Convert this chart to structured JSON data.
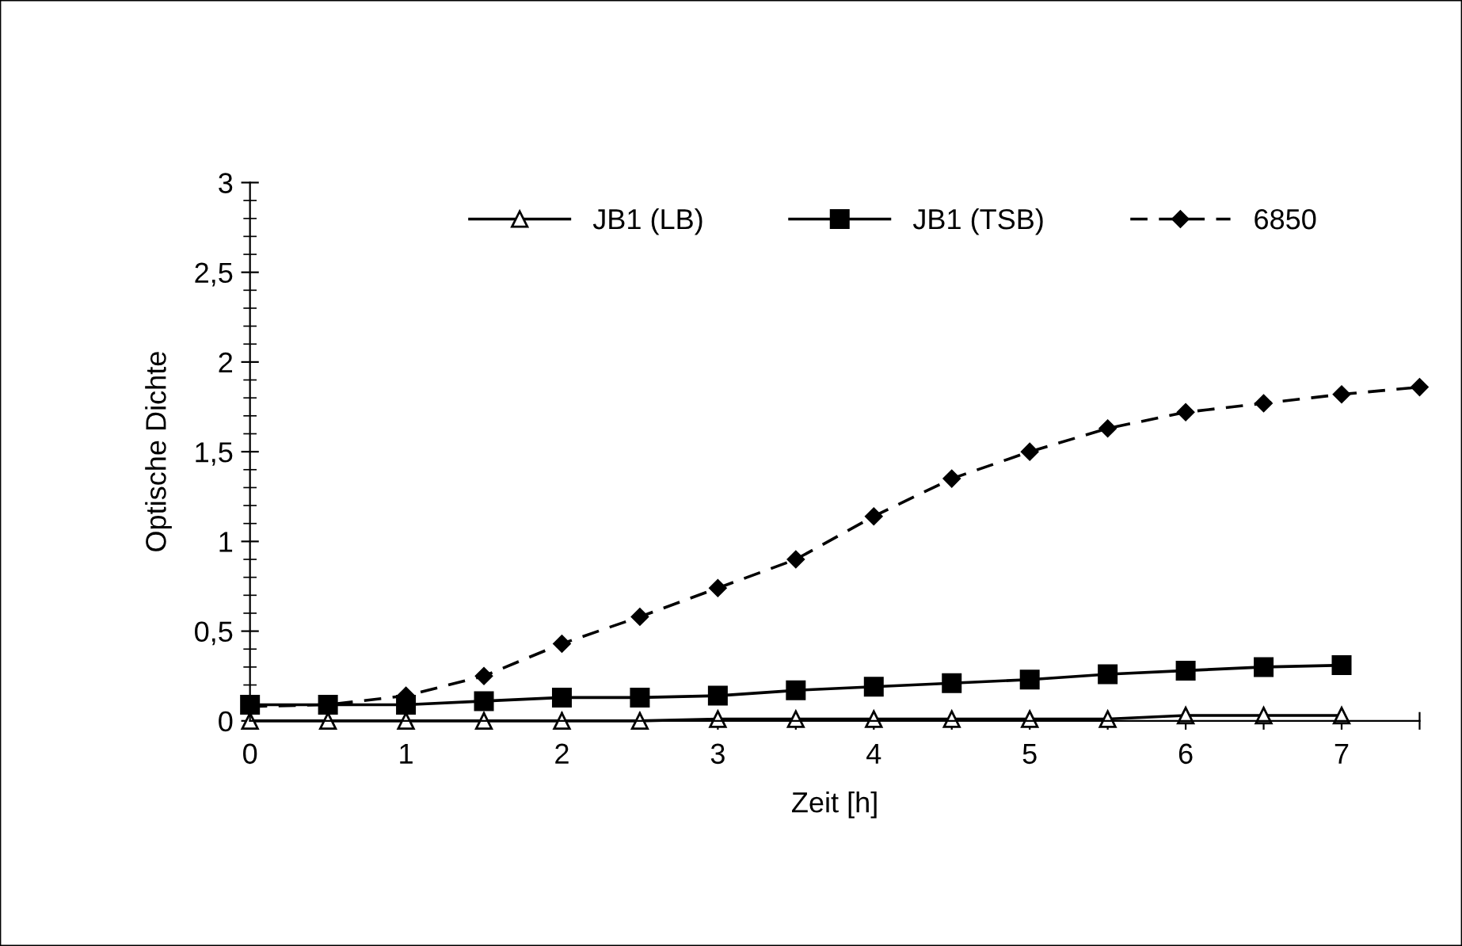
{
  "chart_data": {
    "type": "line",
    "xlabel": "Zeit [h]",
    "ylabel": "Optische Dichte",
    "xlim": [
      0,
      7.5
    ],
    "ylim": [
      0,
      3
    ],
    "xticks": [
      0,
      {
        "value": 0.5,
        "label": null
      },
      1,
      {
        "value": 1.5,
        "label": null
      },
      2,
      {
        "value": 2.5,
        "label": null
      },
      3,
      {
        "value": 3.5,
        "label": null
      },
      4,
      {
        "value": 4.5,
        "label": null
      },
      5,
      {
        "value": 5.5,
        "label": null
      },
      6,
      {
        "value": 6.5,
        "label": null
      },
      7,
      {
        "value": 7.5,
        "label": null
      }
    ],
    "yticks": [
      0,
      {
        "value": 0.5,
        "label": "0,5"
      },
      1,
      {
        "value": 1.5,
        "label": "1,5"
      },
      2,
      {
        "value": 2.5,
        "label": "2,5"
      },
      3
    ],
    "grid": false,
    "legend": "top",
    "series": [
      {
        "name": "JB1 (LB)",
        "color": "#000000",
        "marker": "triangle",
        "line_style": "solid",
        "x": [
          0,
          0.5,
          1,
          1.5,
          2,
          2.5,
          3,
          3.5,
          4,
          4.5,
          5,
          5.5,
          6,
          6.5,
          7
        ],
        "values": [
          0,
          0,
          0,
          0,
          0,
          0,
          0.01,
          0.01,
          0.01,
          0.01,
          0.01,
          0.01,
          0.03,
          0.03,
          0.03
        ]
      },
      {
        "name": "JB1 (TSB)",
        "color": "#000000",
        "marker": "square",
        "line_style": "solid",
        "x": [
          0,
          0.5,
          1,
          1.5,
          2,
          2.5,
          3,
          3.5,
          4,
          4.5,
          5,
          5.5,
          6,
          6.5,
          7
        ],
        "values": [
          0.09,
          0.09,
          0.09,
          0.11,
          0.13,
          0.13,
          0.14,
          0.17,
          0.19,
          0.21,
          0.23,
          0.26,
          0.28,
          0.3,
          0.31
        ]
      },
      {
        "name": "6850",
        "color": "#000000",
        "marker": "diamond",
        "line_style": "dashed",
        "x": [
          0,
          0.5,
          1,
          1.5,
          2,
          2.5,
          3,
          3.5,
          4,
          4.5,
          5,
          5.5,
          6,
          6.5,
          7,
          7.5
        ],
        "values": [
          0.08,
          0.09,
          0.14,
          0.25,
          0.43,
          0.58,
          0.74,
          0.9,
          1.14,
          1.35,
          1.5,
          1.63,
          1.72,
          1.77,
          1.82,
          1.86
        ]
      }
    ]
  }
}
